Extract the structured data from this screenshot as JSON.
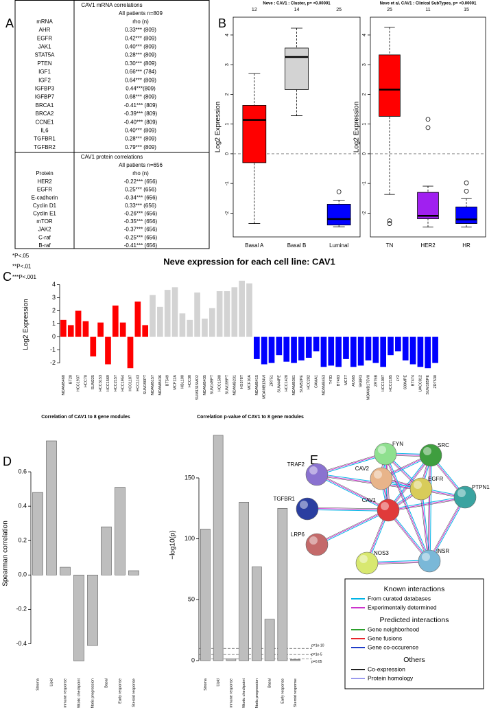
{
  "panel_labels": [
    "A",
    "B",
    "C",
    "D",
    "E"
  ],
  "table_a": {
    "sections": [
      {
        "title": "CAV1 mRNA correlations",
        "subtitle": "All patients n=809",
        "columns": [
          "mRNA",
          "rho (n)"
        ],
        "rows": [
          [
            "AHR",
            "0.33*** (809)"
          ],
          [
            "EGFR",
            "0.42*** (809)"
          ],
          [
            "JAK1",
            "0.40*** (809)"
          ],
          [
            "STAT5A",
            "0.28*** (809)"
          ],
          [
            "PTEN",
            "0.30*** (809)"
          ],
          [
            "IGF1",
            "0.66*** (784)"
          ],
          [
            "IGF2",
            "0.64*** (809)"
          ],
          [
            "IGFBP3",
            "0.44***(809)"
          ],
          [
            "IGFBP7",
            "0.68*** (809)"
          ],
          [
            "BRCA1",
            "-0.41*** (809)"
          ],
          [
            "BRCA2",
            "-0.39*** (809)"
          ],
          [
            "CCNE1",
            "-0.40*** (809)"
          ],
          [
            "IL6",
            "0.40*** (809)"
          ],
          [
            "TGFBR1",
            "0.28*** (809)"
          ],
          [
            "TGFBR2",
            "0.79*** (809)"
          ]
        ]
      },
      {
        "title": "CAV1 protein correlations",
        "subtitle": "All patients n=656",
        "columns": [
          "Protein",
          "rho (n)"
        ],
        "rows": [
          [
            "HER2",
            "-0.22*** (656)"
          ],
          [
            "EGFR",
            "0.25*** (656)"
          ],
          [
            "E-cadherin",
            "-0.34*** (656)"
          ],
          [
            "Cyclin D1",
            "0.33*** (656)"
          ],
          [
            "Cyclin E1",
            "-0.26*** (656)"
          ],
          [
            "mTOR",
            "-0.35*** (656)"
          ],
          [
            "JAK2",
            "-0.37*** (656)"
          ],
          [
            "C-raf",
            "-0.25*** (656)"
          ],
          [
            "B-raf",
            "-0.41*** (656)"
          ]
        ]
      }
    ],
    "footnotes": [
      "*P<.05",
      "**P<.01",
      "***P<.001"
    ]
  },
  "chart_data": [
    {
      "type": "box",
      "title": "Neve : CAV1 : Cluster, p= <0.00001",
      "y_label": "Log2 Expression",
      "categories": [
        "Basal A",
        "Basal B",
        "Luminal"
      ],
      "counts": [
        12,
        14,
        25
      ],
      "colors": [
        "#ff0000",
        "#d3d3d3",
        "#0000ff"
      ],
      "boxes": [
        {
          "low": -2.35,
          "q1": -0.3,
          "median": 1.14,
          "q3": 1.63,
          "high": 2.7,
          "outliers": []
        },
        {
          "low": 1.28,
          "q1": 2.16,
          "median": 3.26,
          "q3": 3.56,
          "high": 4.23,
          "outliers": []
        },
        {
          "low": -2.46,
          "q1": -2.4,
          "median": -2.2,
          "q3": -1.7,
          "high": -1.56,
          "outliers": [
            -1.28
          ]
        }
      ],
      "ylim": [
        -2.8,
        4.6
      ],
      "yticks": [
        -2,
        -1,
        0,
        1,
        2,
        3,
        4
      ],
      "reference_line": 0,
      "frame": true
    },
    {
      "type": "box",
      "title": "Neve et al. CAV1 : Clinical SubTypes, p= <0.00001",
      "y_label": "Log2 Expression",
      "categories": [
        "TN",
        "HER2",
        "HR"
      ],
      "counts": [
        25,
        11,
        15
      ],
      "colors": [
        "#ff0000",
        "#a020f0",
        "#0000ff"
      ],
      "boxes": [
        {
          "low": -1.37,
          "q1": 1.26,
          "median": 2.16,
          "q3": 3.33,
          "high": 4.26,
          "outliers": [
            -2.26,
            -2.35
          ]
        },
        {
          "low": -2.47,
          "q1": -2.19,
          "median": -2.09,
          "q3": -1.3,
          "high": -1.09,
          "outliers": [
            1.16,
            0.88
          ]
        },
        {
          "low": -2.47,
          "q1": -2.35,
          "median": -2.21,
          "q3": -1.79,
          "high": -1.51,
          "outliers": [
            -1.26,
            -0.98
          ]
        }
      ],
      "ylim": [
        -2.8,
        4.6
      ],
      "yticks": [
        -2,
        -1,
        0,
        1,
        2,
        3,
        4
      ],
      "reference_line": 0,
      "frame": true
    },
    {
      "type": "bar",
      "title": "Neve  expression for each cell line: CAV1",
      "y_label": "Log2 Expression",
      "categories": [
        "MDAMB468",
        "BT20",
        "HCC1937",
        "HCC70",
        "SUM225",
        "HCC3153",
        "HCC1569",
        "HCC2157",
        "HCC1954",
        "HCC1187",
        "HCC1143",
        "SUM190PT",
        "MDAMB157",
        "MDAMB436",
        "BT549",
        "MCF12A",
        "HBL100",
        "HCC38",
        "SUM1315MO2",
        "MDAMB435",
        "SUM149PT",
        "HCC1500",
        "SUM159PT",
        "MDAMB231",
        "HS578T",
        "MCF10A",
        "MDAMB415",
        "MDAMB134VI",
        "ZR751",
        "SUM44PE",
        "HCC1428",
        "MDAMB361",
        "SUM52PE",
        "HCC202",
        "CAMA1",
        "MDAMB453",
        "T47D",
        "BT483",
        "MCF7",
        "AU565",
        "SKBR3",
        "MDAMB175VII",
        "ZR75B",
        "HCC1007",
        "HCC2185",
        "LY2",
        "600MPE",
        "BT474",
        "UACC812",
        "SUM185PE",
        "ZR7530"
      ],
      "values": [
        1.3,
        0.9,
        2.0,
        1.2,
        -1.5,
        1.1,
        -2.1,
        2.4,
        1.1,
        -2.4,
        2.7,
        0.9,
        3.2,
        2.3,
        3.6,
        3.8,
        1.8,
        1.3,
        3.4,
        1.4,
        2.2,
        3.5,
        3.5,
        3.8,
        4.3,
        4.1,
        -1.7,
        -2.1,
        -2.0,
        -1.4,
        -1.9,
        -2.0,
        -1.8,
        -1.6,
        -1.1,
        -2.3,
        -2.2,
        -2.3,
        -1.7,
        -2.3,
        -2.2,
        -1.8,
        -2.0,
        -2.3,
        -1.4,
        -1.1,
        -1.8,
        -2.1,
        -2.3,
        -2.4,
        -2.0
      ],
      "colors": [
        "#ff0000",
        "#ff0000",
        "#ff0000",
        "#ff0000",
        "#ff0000",
        "#ff0000",
        "#ff0000",
        "#ff0000",
        "#ff0000",
        "#ff0000",
        "#ff0000",
        "#ff0000",
        "#d3d3d3",
        "#d3d3d3",
        "#d3d3d3",
        "#d3d3d3",
        "#d3d3d3",
        "#d3d3d3",
        "#d3d3d3",
        "#d3d3d3",
        "#d3d3d3",
        "#d3d3d3",
        "#d3d3d3",
        "#d3d3d3",
        "#d3d3d3",
        "#d3d3d3",
        "#0000ff",
        "#0000ff",
        "#0000ff",
        "#0000ff",
        "#0000ff",
        "#0000ff",
        "#0000ff",
        "#0000ff",
        "#0000ff",
        "#0000ff",
        "#0000ff",
        "#0000ff",
        "#0000ff",
        "#0000ff",
        "#0000ff",
        "#0000ff",
        "#0000ff",
        "#0000ff",
        "#0000ff",
        "#0000ff",
        "#0000ff",
        "#0000ff",
        "#0000ff",
        "#0000ff",
        "#0000ff"
      ],
      "ylim": [
        -2.6,
        4.5
      ],
      "yticks": [
        -2,
        -1,
        0,
        1,
        2,
        3,
        4
      ]
    },
    {
      "type": "bar",
      "title": "Correlation of CAV1 to 8 gene modules",
      "y_label": "Spearman correlation",
      "categories": [
        "Stroma",
        "Lipid",
        "Immune response",
        "Mitotic checkpoint",
        "Mitotic progression",
        "Basal",
        "Early response",
        "Steroid response"
      ],
      "values": [
        0.48,
        0.78,
        0.045,
        -0.5,
        -0.41,
        0.28,
        0.51,
        0.025
      ],
      "color": "#bebebe",
      "ylim": [
        -0.55,
        0.8
      ],
      "yticks": [
        -0.4,
        -0.2,
        {
          "value": 0,
          "label": "0.0"
        },
        0.2,
        0.4,
        0.6
      ]
    },
    {
      "type": "bar",
      "title": "Correlation p-value of CAV1 to 8 gene modules",
      "y_label": "−log10(p)",
      "categories": [
        "Stroma",
        "Lipid",
        "Immune response",
        "Mitotic checkpoint",
        "Mitotic progression",
        "Basal",
        "Early response",
        "Steroid response"
      ],
      "values": [
        108,
        185,
        1.5,
        130,
        77,
        34,
        125,
        1
      ],
      "color": "#bebebe",
      "ylim": [
        0,
        190
      ],
      "yticks": [
        0,
        50,
        100,
        150
      ],
      "reference_lines": [
        {
          "value": 10,
          "label": "p=1e-10"
        },
        {
          "value": 5,
          "label": "p=1e-5"
        },
        {
          "value": 1.3,
          "label": "p=0.05"
        }
      ]
    }
  ],
  "network_e": {
    "nodes": [
      {
        "label": "FYN",
        "color": "#8fe08f"
      },
      {
        "label": "SRC",
        "color": "#3f9e3f"
      },
      {
        "label": "TRAF2",
        "color": "#8a72d0"
      },
      {
        "label": "CAV2",
        "color": "#e8b48a"
      },
      {
        "label": "EGFR",
        "color": "#d8cc5a"
      },
      {
        "label": "TGFBR1",
        "color": "#2a3ea0"
      },
      {
        "label": "CAV1",
        "color": "#e03a3a"
      },
      {
        "label": "PTPN1",
        "color": "#3aa3a0"
      },
      {
        "label": "LRP6",
        "color": "#c46a6a"
      },
      {
        "label": "NOS3",
        "color": "#d8e870"
      },
      {
        "label": "INSR",
        "color": "#7ab8d8"
      }
    ],
    "legend": [
      {
        "heading": "Known interactions",
        "items": [
          {
            "label": "From curated databases",
            "color": "#00b4e6"
          },
          {
            "label": "Experimentally determined",
            "color": "#cc33cc"
          }
        ]
      },
      {
        "heading": "Predicted interactions",
        "items": [
          {
            "label": "Gene neighborhood",
            "color": "#2ca02c"
          },
          {
            "label": "Gene fusions",
            "color": "#e8242b"
          },
          {
            "label": "Gene co-occurence",
            "color": "#1f3cc8"
          }
        ]
      },
      {
        "heading": "Others",
        "items": [
          {
            "label": "Co-expression",
            "color": "#222222"
          },
          {
            "label": "Protein homology",
            "color": "#9a9aee"
          }
        ]
      }
    ]
  }
}
